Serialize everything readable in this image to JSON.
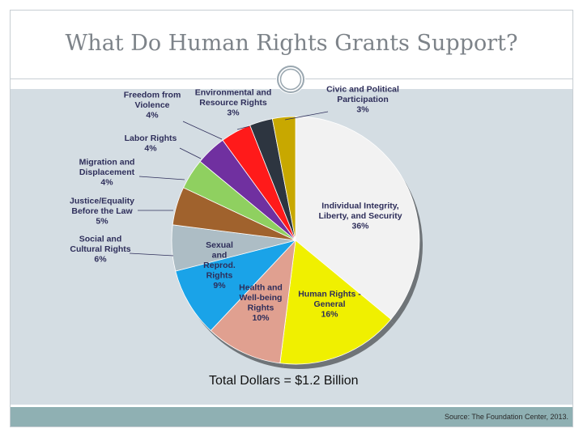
{
  "slide": {
    "title": "What Do Human Rights Grants Support?",
    "source": "Source: The Foundation Center, 2013.",
    "total_label": "Total Dollars = $1.2 Billion"
  },
  "chart_data": {
    "type": "pie",
    "title": "",
    "start_from": "12 o'clock, clockwise",
    "slices": [
      {
        "label": [
          "Individual Integrity,",
          "Liberty, and Security"
        ],
        "value": 36,
        "value_label": "36%",
        "color": "#f2f2f2"
      },
      {
        "label": [
          "Human Rights -",
          "General"
        ],
        "value": 16,
        "value_label": "16%",
        "color": "#f0f000"
      },
      {
        "label": [
          "Health and",
          "Well-being",
          "Rights"
        ],
        "value": 10,
        "value_label": "10%",
        "color": "#e0a090"
      },
      {
        "label": [
          "Sexual",
          "and",
          "Reprod.",
          "Rights"
        ],
        "value": 9,
        "value_label": "9%",
        "color": "#1aa3e8"
      },
      {
        "label": [
          "Social and",
          "Cultural Rights"
        ],
        "value": 6,
        "value_label": "6%",
        "color": "#adbdc5"
      },
      {
        "label": [
          "Justice/Equality",
          "Before the Law"
        ],
        "value": 5,
        "value_label": "5%",
        "color": "#a0622d"
      },
      {
        "label": [
          "Migration and",
          "Displacement"
        ],
        "value": 4,
        "value_label": "4%",
        "color": "#8fd060"
      },
      {
        "label": [
          "Labor Rights"
        ],
        "value": 4,
        "value_label": "4%",
        "color": "#7030a0"
      },
      {
        "label": [
          "Freedom from",
          "Violence"
        ],
        "value": 4,
        "value_label": "4%",
        "color": "#ff1a1a"
      },
      {
        "label": [
          "Environmental and",
          "Resource Rights"
        ],
        "value": 3,
        "value_label": "3%",
        "color": "#2d3540"
      },
      {
        "label": [
          "Civic and Political",
          "Participation"
        ],
        "value": 3,
        "value_label": "3%",
        "color": "#c8a800"
      }
    ]
  }
}
